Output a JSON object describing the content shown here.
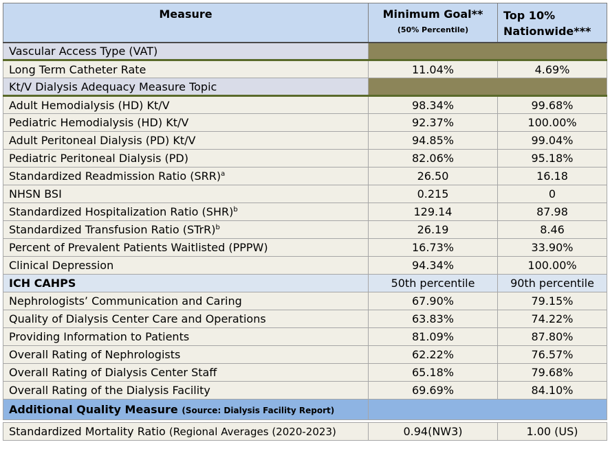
{
  "header": {
    "measure": "Measure",
    "min_goal": "Minimum Goal**",
    "min_goal_sub": "(50% Percentile)",
    "top10_line1": "Top 10%",
    "top10_line2": "Nationwide***"
  },
  "vat": {
    "section_label": "Vascular Access Type (VAT)",
    "rows": [
      {
        "label": "Long Term Catheter Rate",
        "min": "11.04%",
        "top": "4.69%"
      }
    ]
  },
  "ktv": {
    "section_label": "Kt/V Dialysis Adequacy Measure Topic",
    "rows": [
      {
        "label": "Adult Hemodialysis (HD) Kt/V",
        "sup": "",
        "min": "98.34%",
        "top": "99.68%"
      },
      {
        "label": "Pediatric Hemodialysis (HD) Kt/V",
        "sup": "",
        "min": "92.37%",
        "top": "100.00%"
      },
      {
        "label": "Adult Peritoneal Dialysis (PD) Kt/V",
        "sup": "",
        "min": "94.85%",
        "top": "99.04%"
      },
      {
        "label": "Pediatric Peritoneal Dialysis (PD)",
        "sup": "",
        "min": "82.06%",
        "top": "95.18%"
      },
      {
        "label": "Standardized Readmission Ratio (SRR)",
        "sup": "a",
        "min": "26.50",
        "top": "16.18"
      },
      {
        "label": "NHSN BSI",
        "sup": "",
        "min": "0.215",
        "top": "0"
      },
      {
        "label": "Standardized Hospitalization Ratio (SHR)",
        "sup": "b",
        "min": "129.14",
        "top": "87.98"
      },
      {
        "label": "Standardized Transfusion Ratio (STrR)",
        "sup": "b",
        "min": "26.19",
        "top": "8.46"
      },
      {
        "label": "Percent of Prevalent Patients Waitlisted (PPPW)",
        "sup": "",
        "min": "16.73%",
        "top": "33.90%"
      },
      {
        "label": "Clinical Depression",
        "sup": "",
        "min": "94.34%",
        "top": "100.00%"
      }
    ]
  },
  "cahps": {
    "section_label": "ICH CAHPS",
    "min_header": "50th percentile",
    "top_header": "90th percentile",
    "rows": [
      {
        "label": "Nephrologists’ Communication and Caring",
        "min": "67.90%",
        "top": "79.15%"
      },
      {
        "label": "Quality of Dialysis Center Care and Operations",
        "min": "63.83%",
        "top": "74.22%"
      },
      {
        "label": "Providing Information to Patients",
        "min": "81.09%",
        "top": "87.80%"
      },
      {
        "label": "Overall Rating of Nephrologists",
        "min": "62.22%",
        "top": "76.57%"
      },
      {
        "label": "Overall Rating of Dialysis Center Staff",
        "min": "65.18%",
        "top": "79.68%"
      },
      {
        "label": "Overall Rating of the Dialysis Facility",
        "min": "69.69%",
        "top": "84.10%"
      }
    ]
  },
  "additional": {
    "section_label": "Additional Quality Measure",
    "source": "(Source: Dialysis Facility Report)",
    "rows": [
      {
        "label": "Standardized Mortality Ratio",
        "regional": "(Regional Averages (2020-2023)",
        "min": "0.94(NW3)",
        "top": "1.00 (US)"
      }
    ]
  },
  "colors": {
    "header_bg": "#c6d9f1",
    "row_bg": "#f1efe6",
    "section_label_bg": "#d9dce8",
    "section_olive": "#8c8559",
    "cahps_bg": "#dbe5f1",
    "additional_bg": "#8eb4e3"
  }
}
